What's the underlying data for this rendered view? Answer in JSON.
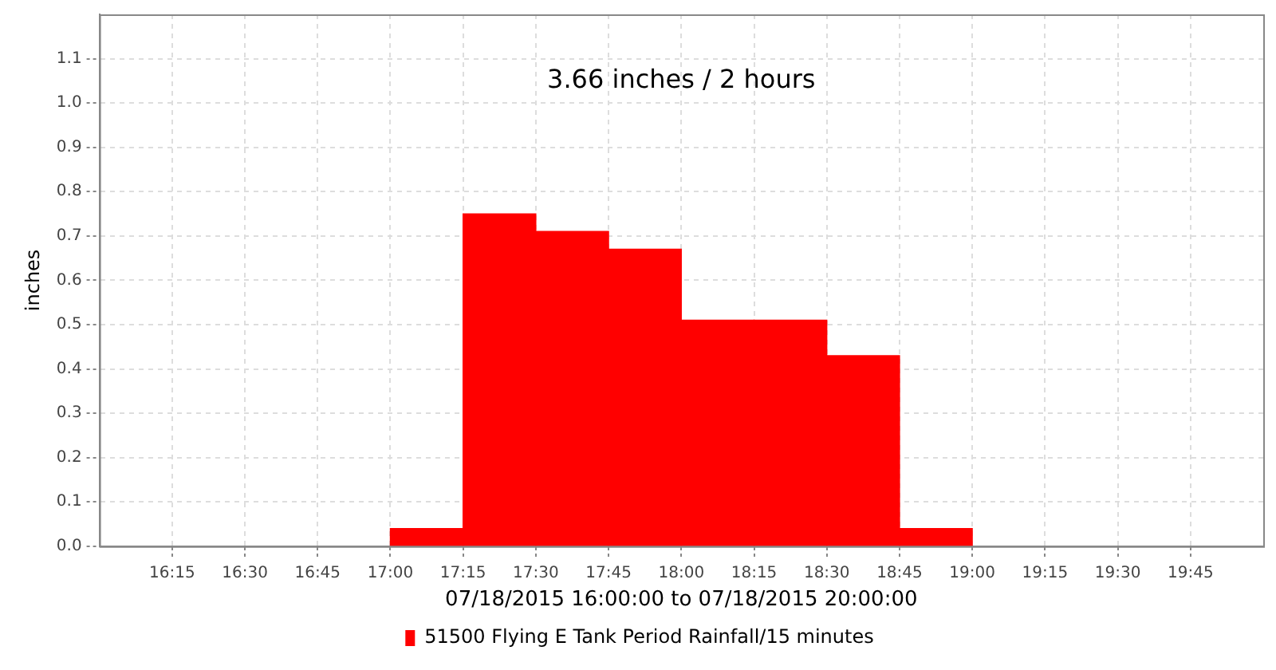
{
  "chart_data": {
    "type": "histogram",
    "title": "3.66 inches / 2 hours",
    "xlabel": "07/18/2015 16:00:00 to 07/18/2015 20:00:00",
    "ylabel": "inches",
    "bins": [
      17,
      17.25,
      17.5,
      17.75,
      18,
      18.25,
      18.5,
      18.75,
      19
    ],
    "series": [
      {
        "name": "51500 Flying E Tank Period Rainfall/15 minutes",
        "color": "#ff0000",
        "values": [
          0.04,
          0.75,
          0.71,
          0.67,
          0.51,
          0.51,
          0.43,
          0.04
        ]
      }
    ],
    "xlim": [
      16,
      20
    ],
    "xticks": [
      {
        "value": 16.25,
        "label": "16:15"
      },
      {
        "value": 16.5,
        "label": "16:30"
      },
      {
        "value": 16.75,
        "label": "16:45"
      },
      {
        "value": 17,
        "label": "17:00"
      },
      {
        "value": 17.25,
        "label": "17:15"
      },
      {
        "value": 17.5,
        "label": "17:30"
      },
      {
        "value": 17.75,
        "label": "17:45"
      },
      {
        "value": 18,
        "label": "18:00"
      },
      {
        "value": 18.25,
        "label": "18:15"
      },
      {
        "value": 18.5,
        "label": "18:30"
      },
      {
        "value": 18.75,
        "label": "18:45"
      },
      {
        "value": 19,
        "label": "19:00"
      },
      {
        "value": 19.25,
        "label": "19:15"
      },
      {
        "value": 19.5,
        "label": "19:30"
      },
      {
        "value": 19.75,
        "label": "19:45"
      }
    ],
    "ylim": [
      0,
      1.2
    ],
    "yticks": [
      {
        "value": 0,
        "label": "0.0"
      },
      0.1,
      0.2,
      0.3,
      0.4,
      0.5,
      0.6,
      0.7,
      0.8,
      0.9,
      {
        "value": 1,
        "label": "1.0"
      },
      1.1
    ],
    "grid": true,
    "legend": "bottom"
  }
}
